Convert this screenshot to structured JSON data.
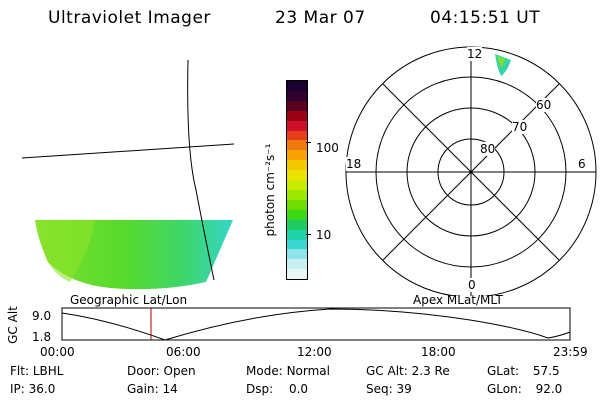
{
  "header": {
    "instrument": "Ultraviolet Imager",
    "date": "23 Mar 07",
    "time": "04:15:51 UT"
  },
  "colorbar": {
    "unit_label": "photon cm⁻²s⁻¹",
    "tick_labels": [
      "100",
      "10"
    ],
    "colors_top_to_bottom": [
      "#1a0030",
      "#30002c",
      "#5a0020",
      "#9a0016",
      "#d0102a",
      "#e83c1c",
      "#f07a10",
      "#f8a400",
      "#f2c800",
      "#e8e400",
      "#c8ec00",
      "#9ee800",
      "#6ede00",
      "#3cd818",
      "#20cc60",
      "#22d2a8",
      "#3ad6d2",
      "#8ee4ea",
      "#c8f0f4",
      "#e8f6f8"
    ]
  },
  "left_panel": {
    "caption": "Geographic Lat/Lon"
  },
  "right_panel": {
    "caption": "Apex MLat/MLT",
    "mlt_labels": {
      "top": "12",
      "bottom": "0",
      "left": "18",
      "right": "6"
    },
    "lat_labels": [
      "60",
      "70",
      "80"
    ]
  },
  "altitude_plot": {
    "y_axis_label": "GC Alt",
    "y_ticks": [
      "9.0",
      "1.8"
    ],
    "x_ticks": [
      "00:00",
      "06:00",
      "12:00",
      "18:00",
      "23:59"
    ]
  },
  "status": {
    "flt": {
      "label": "Flt:",
      "value": "LBHL"
    },
    "ip": {
      "label": "IP:",
      "value": "36.0"
    },
    "door": {
      "label": "Door:",
      "value": "Open"
    },
    "gain": {
      "label": "Gain:",
      "value": "14"
    },
    "mode": {
      "label": "Mode:",
      "value": "Normal"
    },
    "dsp": {
      "label": "Dsp:",
      "value": "0.0"
    },
    "gcalt": {
      "label": "GC Alt:",
      "value": "2.3 Re"
    },
    "seq": {
      "label": "Seq:",
      "value": "39"
    },
    "glat": {
      "label": "GLat:",
      "value": "57.5"
    },
    "glon": {
      "label": "GLon:",
      "value": "92.0"
    }
  }
}
